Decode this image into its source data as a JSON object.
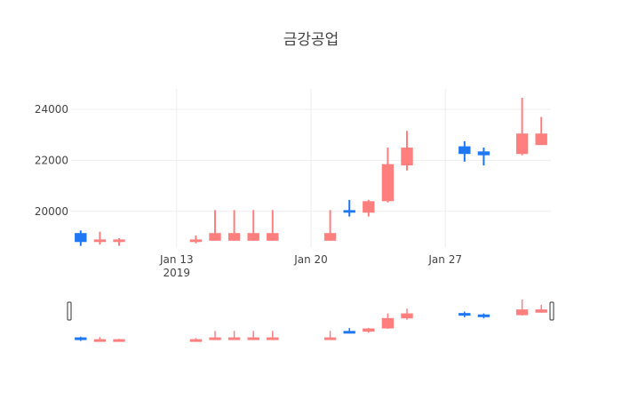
{
  "chart_data": {
    "type": "candlestick",
    "title": "금강공업",
    "xlabel": "",
    "ylabel": "",
    "ylim": [
      18600,
      24800
    ],
    "grid": true,
    "legend": "none",
    "rangeslider": true,
    "y_ticks": [
      20000,
      22000,
      24000
    ],
    "x_ticks": [
      {
        "date": "2019-01-13",
        "label": "Jan 13",
        "sublabel": "2019"
      },
      {
        "date": "2019-01-20",
        "label": "Jan 20",
        "sublabel": ""
      },
      {
        "date": "2019-01-27",
        "label": "Jan 27",
        "sublabel": ""
      }
    ],
    "colors": {
      "increasing": "#ff7f7f",
      "decreasing": "#1f77f4"
    },
    "candles": [
      {
        "date": "2019-01-08",
        "open": 19150,
        "high": 19250,
        "low": 18650,
        "close": 18800
      },
      {
        "date": "2019-01-09",
        "open": 18800,
        "high": 19200,
        "low": 18700,
        "close": 18900
      },
      {
        "date": "2019-01-10",
        "open": 18800,
        "high": 18950,
        "low": 18650,
        "close": 18900
      },
      {
        "date": "2019-01-14",
        "open": 18800,
        "high": 19050,
        "low": 18750,
        "close": 18900
      },
      {
        "date": "2019-01-15",
        "open": 18850,
        "high": 20050,
        "low": 18850,
        "close": 19150
      },
      {
        "date": "2019-01-16",
        "open": 18850,
        "high": 20050,
        "low": 18850,
        "close": 19150
      },
      {
        "date": "2019-01-17",
        "open": 18850,
        "high": 20050,
        "low": 18850,
        "close": 19150
      },
      {
        "date": "2019-01-18",
        "open": 18850,
        "high": 20050,
        "low": 18850,
        "close": 19150
      },
      {
        "date": "2019-01-21",
        "open": 18850,
        "high": 20050,
        "low": 18850,
        "close": 19150
      },
      {
        "date": "2019-01-22",
        "open": 20050,
        "high": 20450,
        "low": 19800,
        "close": 19950
      },
      {
        "date": "2019-01-23",
        "open": 19950,
        "high": 20450,
        "low": 19800,
        "close": 20400
      },
      {
        "date": "2019-01-24",
        "open": 20400,
        "high": 22500,
        "low": 20350,
        "close": 21850
      },
      {
        "date": "2019-01-25",
        "open": 21800,
        "high": 23150,
        "low": 21600,
        "close": 22500
      },
      {
        "date": "2019-01-28",
        "open": 22550,
        "high": 22750,
        "low": 21950,
        "close": 22250
      },
      {
        "date": "2019-01-29",
        "open": 22350,
        "high": 22500,
        "low": 21800,
        "close": 22200
      },
      {
        "date": "2019-01-31",
        "open": 22250,
        "high": 24450,
        "low": 22200,
        "close": 23050
      },
      {
        "date": "2019-02-01",
        "open": 22600,
        "high": 23700,
        "low": 22600,
        "close": 23050
      }
    ]
  }
}
